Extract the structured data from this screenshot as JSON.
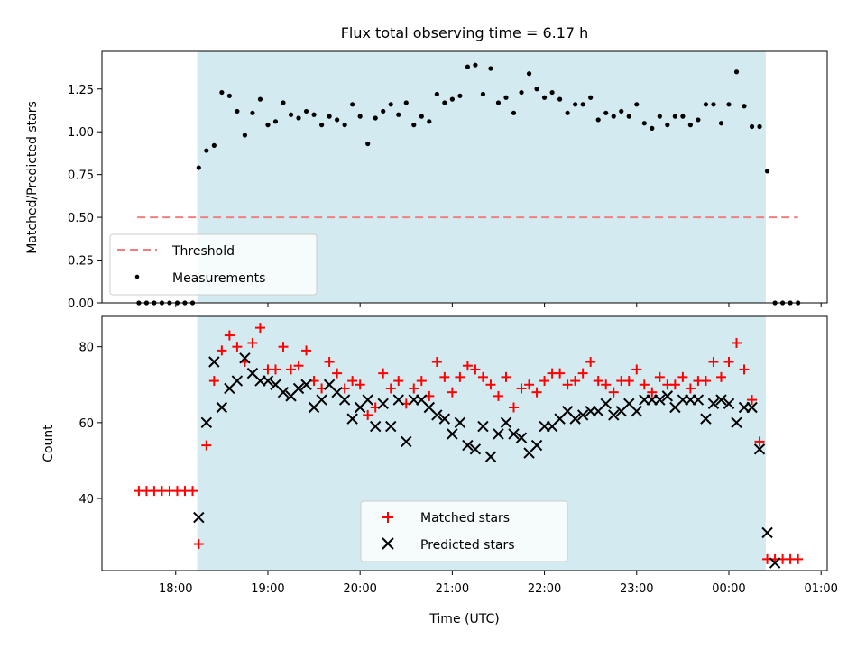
{
  "chart_data": [
    {
      "type": "scatter",
      "title": "Flux total observing time = 6.17 h",
      "xlabel": "",
      "ylabel": "Matched/Predicted stars",
      "ylim": [
        0,
        1.47
      ],
      "yticks": [
        "0.00",
        "0.25",
        "0.50",
        "0.75",
        "1.00",
        "1.25"
      ],
      "ytick_values": [
        0,
        0.25,
        0.5,
        0.75,
        1.0,
        1.25
      ],
      "shaded_span": [
        "18:14",
        "00:24"
      ],
      "shade_color": "#d3eaf1",
      "threshold": {
        "name": "Threshold",
        "value": 0.5,
        "x": [
          "17:35",
          "00:45"
        ],
        "color": "#f08080"
      },
      "legend_position": "lower-left",
      "series": [
        {
          "name": "Measurements",
          "color": "#000000",
          "x": [
            "17:36",
            "17:41",
            "17:46",
            "17:51",
            "17:56",
            "18:01",
            "18:06",
            "18:11",
            "18:15",
            "18:20",
            "18:25",
            "18:30",
            "18:35",
            "18:40",
            "18:45",
            "18:50",
            "18:55",
            "19:00",
            "19:05",
            "19:10",
            "19:15",
            "19:20",
            "19:25",
            "19:30",
            "19:35",
            "19:40",
            "19:45",
            "19:50",
            "19:55",
            "20:00",
            "20:05",
            "20:10",
            "20:15",
            "20:20",
            "20:25",
            "20:30",
            "20:35",
            "20:40",
            "20:45",
            "20:50",
            "20:55",
            "21:00",
            "21:05",
            "21:10",
            "21:15",
            "21:20",
            "21:25",
            "21:30",
            "21:35",
            "21:40",
            "21:45",
            "21:50",
            "21:55",
            "22:00",
            "22:05",
            "22:10",
            "22:15",
            "22:20",
            "22:25",
            "22:30",
            "22:35",
            "22:40",
            "22:45",
            "22:50",
            "22:55",
            "23:00",
            "23:05",
            "23:10",
            "23:15",
            "23:20",
            "23:25",
            "23:30",
            "23:35",
            "23:40",
            "23:45",
            "23:50",
            "23:55",
            "00:00",
            "00:05",
            "00:10",
            "00:15",
            "00:20",
            "00:25",
            "00:30",
            "00:35",
            "00:40",
            "00:45"
          ],
          "y": [
            0,
            0,
            0,
            0,
            0,
            0,
            0,
            0,
            0.79,
            0.89,
            0.92,
            1.23,
            1.21,
            1.12,
            0.98,
            1.11,
            1.19,
            1.04,
            1.06,
            1.17,
            1.1,
            1.08,
            1.12,
            1.1,
            1.04,
            1.09,
            1.07,
            1.04,
            1.16,
            1.09,
            0.93,
            1.08,
            1.12,
            1.16,
            1.1,
            1.17,
            1.04,
            1.09,
            1.06,
            1.22,
            1.17,
            1.19,
            1.21,
            1.38,
            1.39,
            1.22,
            1.37,
            1.17,
            1.2,
            1.11,
            1.23,
            1.34,
            1.25,
            1.2,
            1.23,
            1.19,
            1.11,
            1.16,
            1.16,
            1.2,
            1.07,
            1.11,
            1.09,
            1.12,
            1.09,
            1.16,
            1.05,
            1.02,
            1.09,
            1.04,
            1.09,
            1.09,
            1.04,
            1.07,
            1.16,
            1.16,
            1.05,
            1.16,
            1.35,
            1.15,
            1.03,
            1.03,
            0.77,
            0,
            0,
            0,
            0
          ]
        }
      ]
    },
    {
      "type": "scatter",
      "title": "",
      "xlabel": "Time (UTC)",
      "ylabel": "Count",
      "ylim": [
        21,
        88
      ],
      "yticks": [
        "40",
        "60",
        "80"
      ],
      "ytick_values": [
        40,
        60,
        80
      ],
      "xlim": [
        "17:12",
        "01:04"
      ],
      "xticks": [
        "18:00",
        "19:00",
        "20:00",
        "21:00",
        "22:00",
        "23:00",
        "00:00",
        "01:00"
      ],
      "legend_position": "lower-center",
      "series": [
        {
          "name": "Matched stars",
          "color": "#ff0000",
          "marker": "plus",
          "x": [
            "17:36",
            "17:41",
            "17:46",
            "17:51",
            "17:56",
            "18:01",
            "18:06",
            "18:11",
            "18:15",
            "18:20",
            "18:25",
            "18:30",
            "18:35",
            "18:40",
            "18:45",
            "18:50",
            "18:55",
            "19:00",
            "19:05",
            "19:10",
            "19:15",
            "19:20",
            "19:25",
            "19:30",
            "19:35",
            "19:40",
            "19:45",
            "19:50",
            "19:55",
            "20:00",
            "20:05",
            "20:10",
            "20:15",
            "20:20",
            "20:25",
            "20:30",
            "20:35",
            "20:40",
            "20:45",
            "20:50",
            "20:55",
            "21:00",
            "21:05",
            "21:10",
            "21:15",
            "21:20",
            "21:25",
            "21:30",
            "21:35",
            "21:40",
            "21:45",
            "21:50",
            "21:55",
            "22:00",
            "22:05",
            "22:10",
            "22:15",
            "22:20",
            "22:25",
            "22:30",
            "22:35",
            "22:40",
            "22:45",
            "22:50",
            "22:55",
            "23:00",
            "23:05",
            "23:10",
            "23:15",
            "23:20",
            "23:25",
            "23:30",
            "23:35",
            "23:40",
            "23:45",
            "23:50",
            "23:55",
            "00:00",
            "00:05",
            "00:10",
            "00:15",
            "00:20",
            "00:25",
            "00:30",
            "00:35",
            "00:40",
            "00:45"
          ],
          "y": [
            42,
            42,
            42,
            42,
            42,
            42,
            42,
            42,
            28,
            54,
            71,
            79,
            83,
            80,
            76,
            81,
            85,
            74,
            74,
            80,
            74,
            75,
            79,
            71,
            69,
            76,
            73,
            69,
            71,
            70,
            62,
            64,
            73,
            69,
            71,
            65,
            69,
            71,
            67,
            76,
            72,
            68,
            72,
            75,
            74,
            72,
            70,
            67,
            72,
            64,
            69,
            70,
            68,
            71,
            73,
            73,
            70,
            71,
            73,
            76,
            71,
            70,
            68,
            71,
            71,
            74,
            70,
            68,
            72,
            70,
            70,
            72,
            69,
            71,
            71,
            76,
            72,
            76,
            81,
            74,
            66,
            55,
            24,
            24,
            24,
            24,
            24
          ]
        },
        {
          "name": "Predicted stars",
          "color": "#000000",
          "marker": "x",
          "x": [
            "18:15",
            "18:20",
            "18:25",
            "18:30",
            "18:35",
            "18:40",
            "18:45",
            "18:50",
            "18:55",
            "19:00",
            "19:05",
            "19:10",
            "19:15",
            "19:20",
            "19:25",
            "19:30",
            "19:35",
            "19:40",
            "19:45",
            "19:50",
            "19:55",
            "20:00",
            "20:05",
            "20:10",
            "20:15",
            "20:20",
            "20:25",
            "20:30",
            "20:35",
            "20:40",
            "20:45",
            "20:50",
            "20:55",
            "21:00",
            "21:05",
            "21:10",
            "21:15",
            "21:20",
            "21:25",
            "21:30",
            "21:35",
            "21:40",
            "21:45",
            "21:50",
            "21:55",
            "22:00",
            "22:05",
            "22:10",
            "22:15",
            "22:20",
            "22:25",
            "22:30",
            "22:35",
            "22:40",
            "22:45",
            "22:50",
            "22:55",
            "23:00",
            "23:05",
            "23:10",
            "23:15",
            "23:20",
            "23:25",
            "23:30",
            "23:35",
            "23:40",
            "23:45",
            "23:50",
            "23:55",
            "00:00",
            "00:05",
            "00:10",
            "00:15",
            "00:20",
            "00:25",
            "00:30"
          ],
          "y": [
            35,
            60,
            76,
            64,
            69,
            71,
            77,
            73,
            71,
            71,
            70,
            68,
            67,
            69,
            70,
            64,
            66,
            70,
            68,
            66,
            61,
            64,
            66,
            59,
            65,
            59,
            66,
            55,
            66,
            66,
            64,
            62,
            61,
            57,
            60,
            54,
            53,
            59,
            51,
            57,
            60,
            57,
            56,
            52,
            54,
            59,
            59,
            61,
            63,
            61,
            62,
            63,
            63,
            65,
            62,
            63,
            65,
            63,
            66,
            66,
            66,
            67,
            64,
            66,
            66,
            66,
            61,
            65,
            66,
            65,
            60,
            64,
            64,
            53,
            31,
            23
          ]
        }
      ]
    }
  ]
}
